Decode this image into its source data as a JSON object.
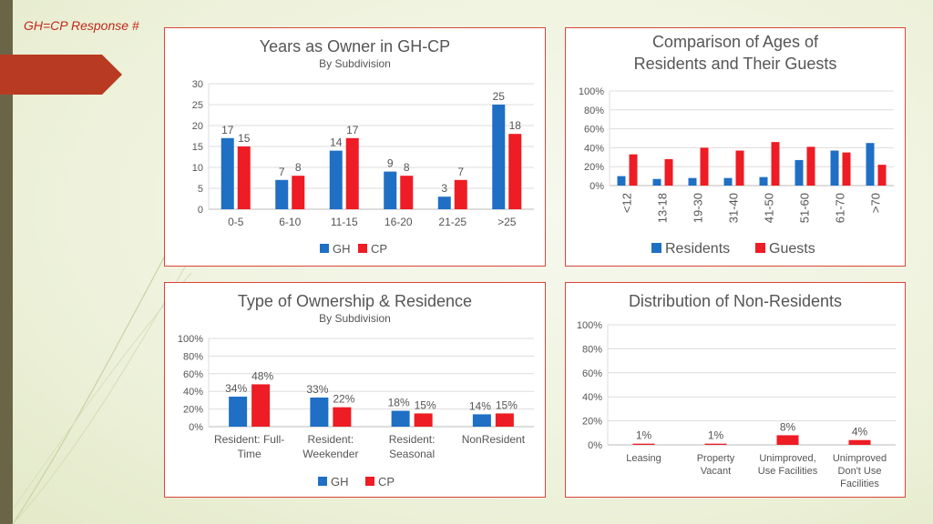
{
  "slide": {
    "header_label": "GH=CP Response #",
    "colors": {
      "gh": "#1f6fc5",
      "cp": "#ee1c24",
      "accent": "#c0281c"
    }
  },
  "chart_data": [
    {
      "id": "years_owner",
      "type": "bar",
      "title": "Years as Owner in GH-CP",
      "subtitle": "By Subdivision",
      "categories": [
        "0-5",
        "6-10",
        "11-15",
        "16-20",
        "21-25",
        ">25"
      ],
      "series": [
        {
          "name": "GH",
          "values": [
            17,
            7,
            14,
            9,
            3,
            25
          ]
        },
        {
          "name": "CP",
          "values": [
            15,
            8,
            17,
            8,
            7,
            18
          ]
        }
      ],
      "ylim": [
        0,
        30
      ],
      "yticks": [
        "0",
        "5",
        "10",
        "15",
        "20",
        "25",
        "30"
      ],
      "data_labels": true,
      "legend": "bottom"
    },
    {
      "id": "ages",
      "type": "bar",
      "title_lines": [
        "Comparison of Ages of",
        "Residents and Their Guests"
      ],
      "categories": [
        "<12",
        "13-18",
        "19-30",
        "31-40",
        "41-50",
        "51-60",
        "61-70",
        ">70"
      ],
      "series": [
        {
          "name": "Residents",
          "values": [
            10,
            7,
            8,
            8,
            9,
            27,
            37,
            45
          ]
        },
        {
          "name": "Guests",
          "values": [
            33,
            28,
            40,
            37,
            46,
            41,
            35,
            22
          ]
        }
      ],
      "ylim": [
        0,
        100
      ],
      "yticks": [
        "0%",
        "20%",
        "40%",
        "60%",
        "80%",
        "100%"
      ],
      "data_labels": false,
      "legend": "bottom"
    },
    {
      "id": "ownership",
      "type": "bar",
      "title": "Type of Ownership & Residence",
      "subtitle": "By Subdivision",
      "categories": [
        [
          "Resident: Full-",
          "Time"
        ],
        [
          "Resident:",
          "Weekender"
        ],
        [
          "Resident:",
          "Seasonal"
        ],
        [
          "NonResident"
        ]
      ],
      "series": [
        {
          "name": "GH",
          "values": [
            34,
            33,
            18,
            14
          ],
          "labels": [
            "34%",
            "33%",
            "18%",
            "14%"
          ]
        },
        {
          "name": "CP",
          "values": [
            48,
            22,
            15,
            15
          ],
          "labels": [
            "48%",
            "22%",
            "15%",
            "15%"
          ]
        }
      ],
      "ylim": [
        0,
        100
      ],
      "yticks": [
        "0%",
        "20%",
        "40%",
        "60%",
        "80%",
        "100%"
      ],
      "data_labels": true,
      "legend": "bottom"
    },
    {
      "id": "nonresidents",
      "type": "bar",
      "title": "Distribution of Non-Residents",
      "categories": [
        [
          "Leasing"
        ],
        [
          "Property",
          "Vacant"
        ],
        [
          "Unimproved,",
          "Use Facilities"
        ],
        [
          "Unimproved",
          "Don't Use",
          "Facilities"
        ]
      ],
      "series": [
        {
          "name": "CP",
          "values": [
            1,
            1,
            8,
            4
          ],
          "labels": [
            "1%",
            "1%",
            "8%",
            "4%"
          ]
        }
      ],
      "ylim": [
        0,
        100
      ],
      "yticks": [
        "0%",
        "20%",
        "40%",
        "60%",
        "80%",
        "100%"
      ],
      "data_labels": true
    }
  ]
}
